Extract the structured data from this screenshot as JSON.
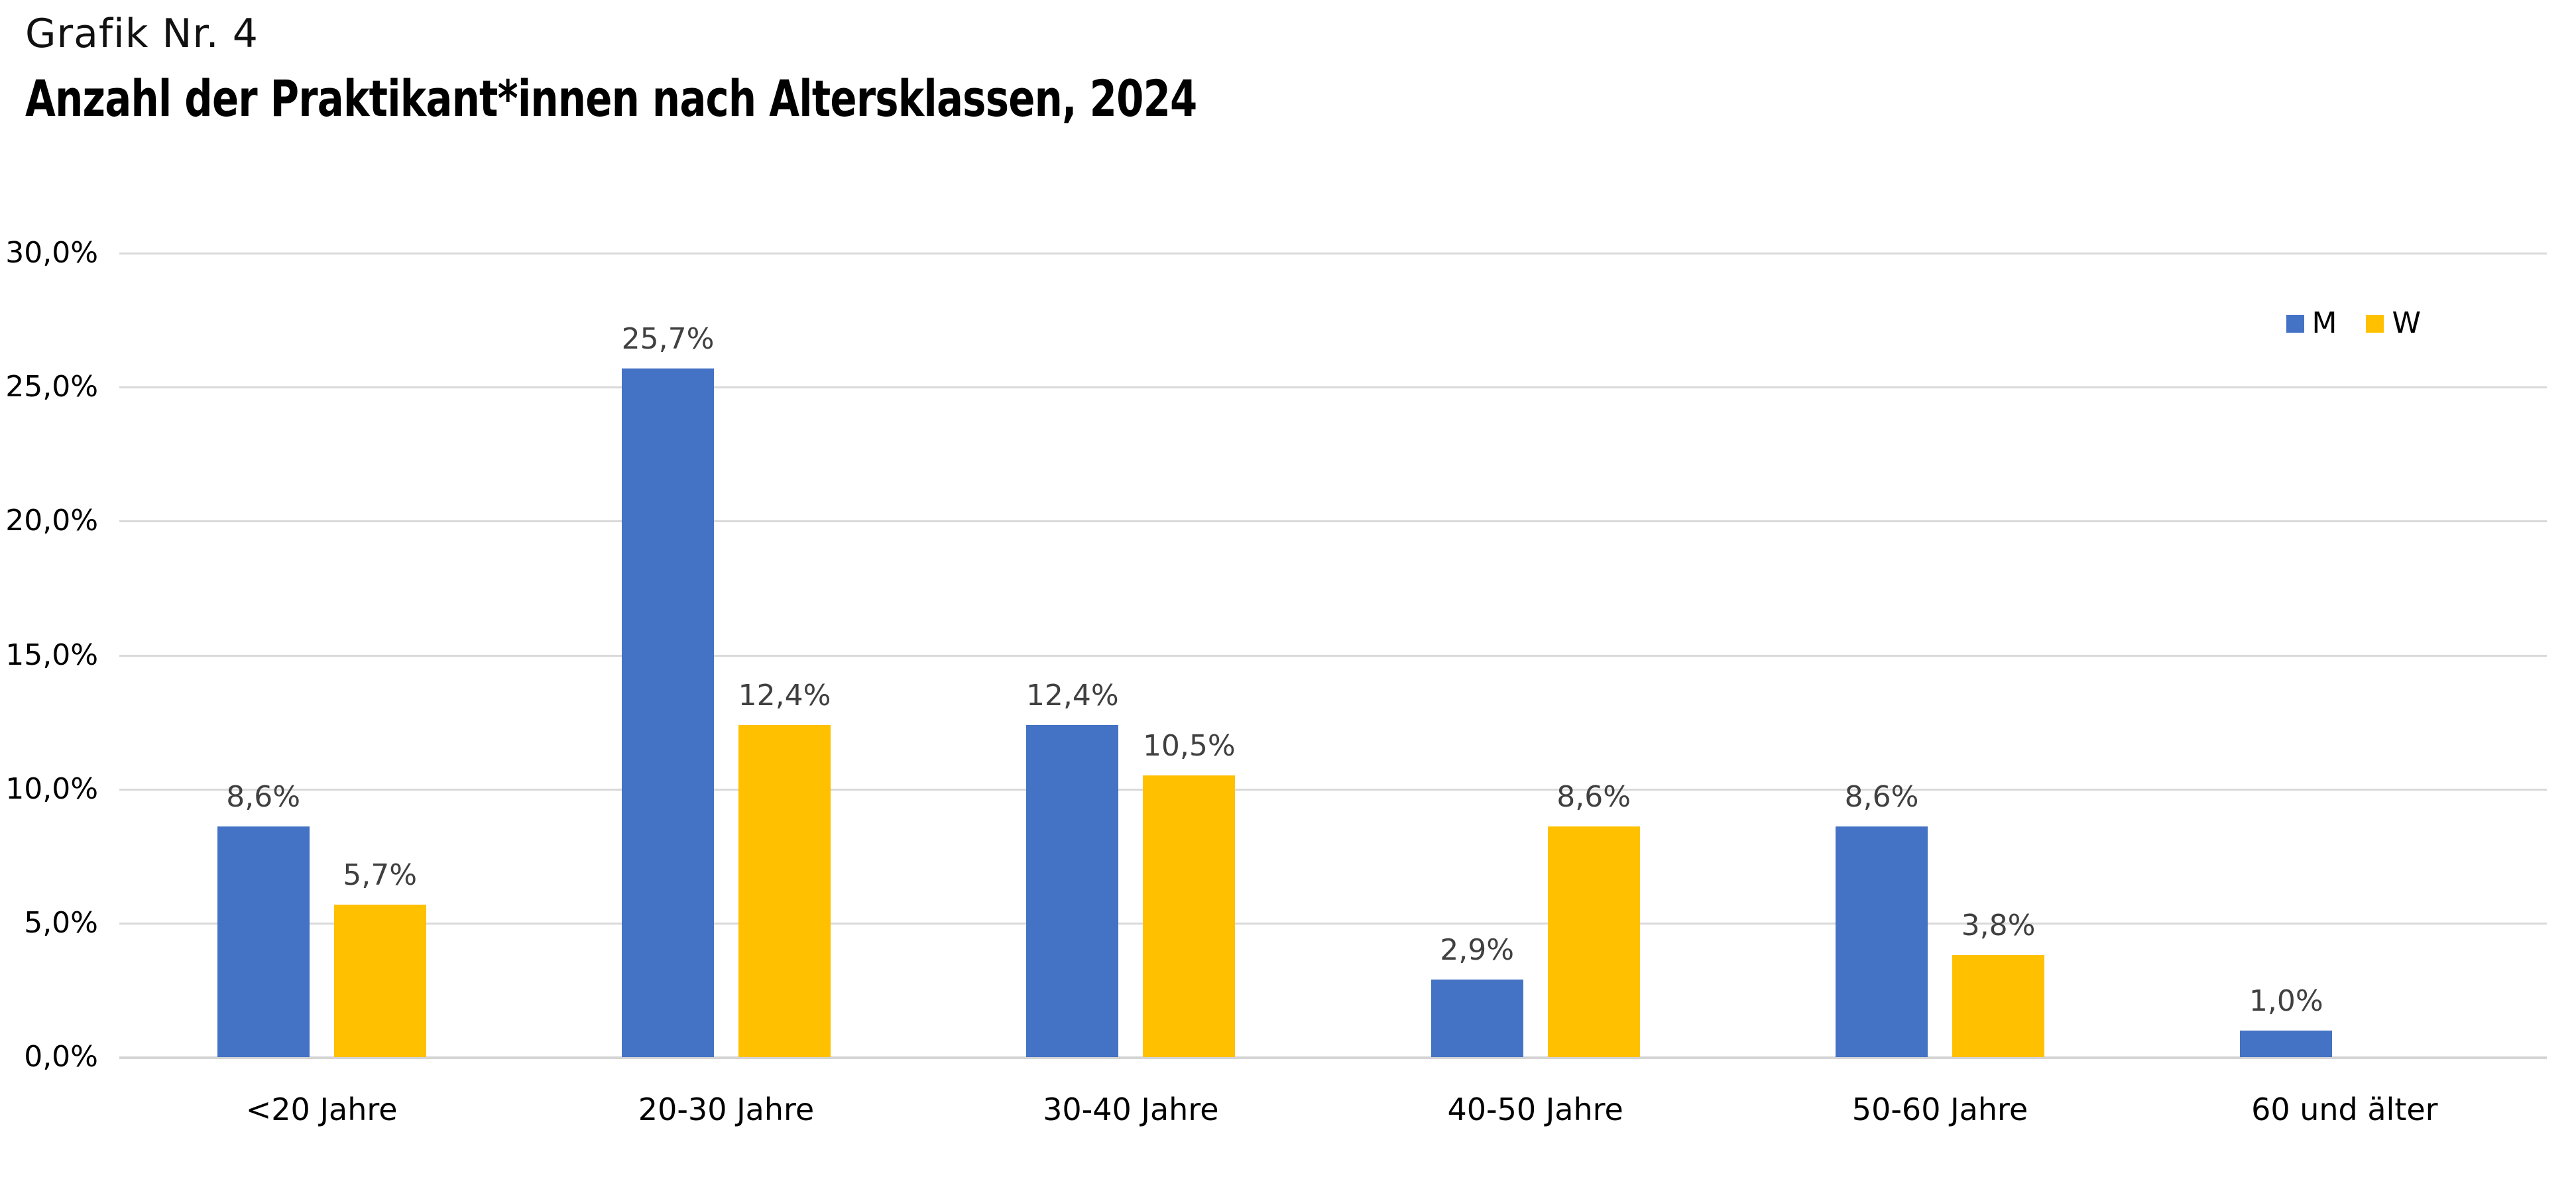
{
  "header": {
    "label": "Grafik Nr. 4",
    "title": "Anzahl der Praktikant*innen nach Altersklassen, 2024"
  },
  "legend": [
    {
      "name": "M",
      "color": "#4472C4"
    },
    {
      "name": "W",
      "color": "#FFC000"
    }
  ],
  "colors": {
    "series_m": "#4472C4",
    "series_w": "#FFC000",
    "gridline": "#D9D9D9",
    "data_label": "#404040",
    "axis_label": "#000000"
  },
  "chart_data": {
    "type": "bar",
    "title": "Anzahl der Praktikant*innen nach Altersklassen, 2024",
    "xlabel": "",
    "ylabel": "",
    "categories": [
      "<20 Jahre",
      "20-30 Jahre",
      "30-40 Jahre",
      "40-50 Jahre",
      "50-60 Jahre",
      "60 und älter"
    ],
    "series": [
      {
        "name": "M",
        "color": "#4472C4",
        "values": [
          8.6,
          25.7,
          12.4,
          2.9,
          8.6,
          1.0
        ]
      },
      {
        "name": "W",
        "color": "#FFC000",
        "values": [
          5.7,
          12.4,
          10.5,
          8.6,
          3.8,
          0.0
        ]
      }
    ],
    "value_labels": [
      [
        "8,6%",
        "25,7%",
        "12,4%",
        "2,9%",
        "8,6%",
        "1,0%"
      ],
      [
        "5,7%",
        "12,4%",
        "10,5%",
        "8,6%",
        "3,8%",
        ""
      ]
    ],
    "y_ticks": [
      "30,0%",
      "25,0%",
      "20,0%",
      "15,0%",
      "10,0%",
      "5,0%",
      "0,0%"
    ],
    "ylim": [
      0,
      30
    ],
    "grid": true,
    "legend_position": "top-right"
  }
}
